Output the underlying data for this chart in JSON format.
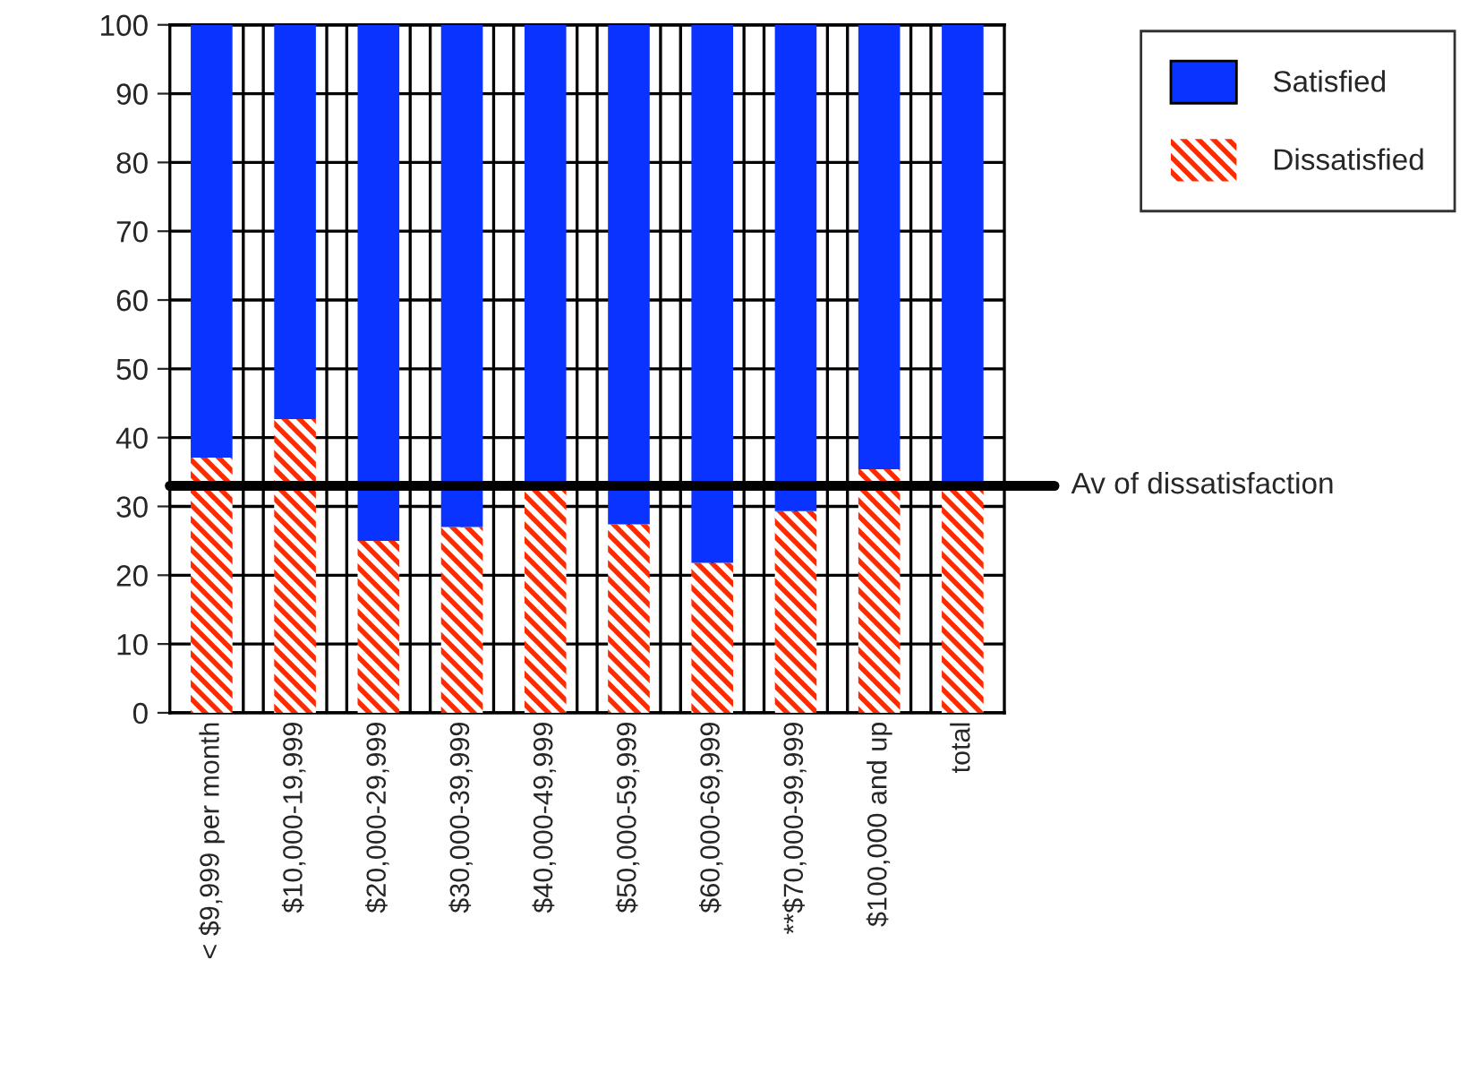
{
  "chart_data": {
    "type": "bar",
    "stacked": true,
    "categories": [
      "< $9,999 per month",
      "$10,000-19,999",
      "$20,000-29,999",
      "$30,000-39,999",
      "$40,000-49,999",
      "$50,000-59,999",
      "$60,000-69,999",
      "**$70,000-99,999",
      "$100,000 and up",
      "total"
    ],
    "series": [
      {
        "name": "Dissatisfied",
        "color": "#ff2a00",
        "values": [
          37.1,
          42.7,
          25.0,
          27.0,
          32.6,
          27.4,
          21.8,
          29.3,
          35.4,
          32.6
        ]
      },
      {
        "name": "Satisfied",
        "color": "#0a33ff",
        "values": [
          62.9,
          57.3,
          75.0,
          73.0,
          67.4,
          72.6,
          78.2,
          70.7,
          64.6,
          67.4
        ]
      }
    ],
    "ylim": [
      0,
      100
    ],
    "yticks": [
      0,
      10,
      20,
      30,
      40,
      50,
      60,
      70,
      80,
      90,
      100
    ],
    "grid": true,
    "legend": "top right",
    "ref_lines": [
      {
        "axis": "y",
        "value": 33,
        "label": "Av of dissatisfaction",
        "color": "#000000"
      }
    ]
  }
}
